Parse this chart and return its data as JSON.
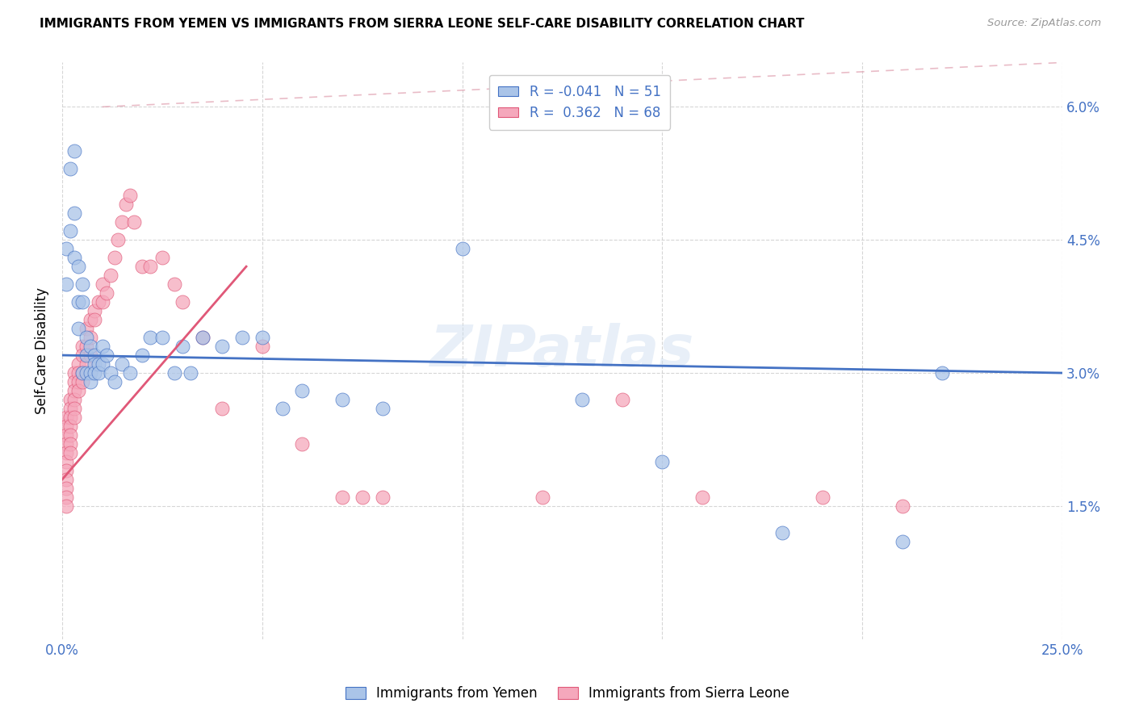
{
  "title": "IMMIGRANTS FROM YEMEN VS IMMIGRANTS FROM SIERRA LEONE SELF-CARE DISABILITY CORRELATION CHART",
  "source": "Source: ZipAtlas.com",
  "ylabel": "Self-Care Disability",
  "yticks": [
    "1.5%",
    "3.0%",
    "4.5%",
    "6.0%"
  ],
  "ytick_vals": [
    0.015,
    0.03,
    0.045,
    0.06
  ],
  "xlim": [
    0.0,
    0.25
  ],
  "ylim": [
    0.0,
    0.065
  ],
  "legend_r_yemen": "-0.041",
  "legend_n_yemen": "51",
  "legend_r_sierra": "0.362",
  "legend_n_sierra": "68",
  "color_yemen": "#aac4e8",
  "color_sierra": "#f5a8bc",
  "trendline_yemen_color": "#4472c4",
  "trendline_sierra_color": "#e05878",
  "watermark": "ZIPatlas",
  "yemen_x": [
    0.001,
    0.001,
    0.002,
    0.002,
    0.003,
    0.003,
    0.003,
    0.004,
    0.004,
    0.004,
    0.005,
    0.005,
    0.005,
    0.006,
    0.006,
    0.006,
    0.007,
    0.007,
    0.007,
    0.008,
    0.008,
    0.008,
    0.009,
    0.009,
    0.01,
    0.01,
    0.011,
    0.012,
    0.013,
    0.015,
    0.017,
    0.02,
    0.022,
    0.025,
    0.028,
    0.03,
    0.032,
    0.035,
    0.04,
    0.045,
    0.05,
    0.055,
    0.06,
    0.07,
    0.08,
    0.1,
    0.13,
    0.15,
    0.18,
    0.21,
    0.22
  ],
  "yemen_y": [
    0.044,
    0.04,
    0.053,
    0.046,
    0.055,
    0.048,
    0.043,
    0.042,
    0.038,
    0.035,
    0.04,
    0.038,
    0.03,
    0.034,
    0.032,
    0.03,
    0.033,
    0.03,
    0.029,
    0.032,
    0.031,
    0.03,
    0.031,
    0.03,
    0.033,
    0.031,
    0.032,
    0.03,
    0.029,
    0.031,
    0.03,
    0.032,
    0.034,
    0.034,
    0.03,
    0.033,
    0.03,
    0.034,
    0.033,
    0.034,
    0.034,
    0.026,
    0.028,
    0.027,
    0.026,
    0.044,
    0.027,
    0.02,
    0.012,
    0.011,
    0.03
  ],
  "sierra_x": [
    0.001,
    0.001,
    0.001,
    0.001,
    0.001,
    0.001,
    0.001,
    0.001,
    0.001,
    0.001,
    0.001,
    0.002,
    0.002,
    0.002,
    0.002,
    0.002,
    0.002,
    0.002,
    0.003,
    0.003,
    0.003,
    0.003,
    0.003,
    0.003,
    0.004,
    0.004,
    0.004,
    0.004,
    0.005,
    0.005,
    0.005,
    0.005,
    0.006,
    0.006,
    0.006,
    0.007,
    0.007,
    0.007,
    0.008,
    0.008,
    0.009,
    0.01,
    0.01,
    0.011,
    0.012,
    0.013,
    0.014,
    0.015,
    0.016,
    0.017,
    0.018,
    0.02,
    0.022,
    0.025,
    0.028,
    0.03,
    0.035,
    0.04,
    0.05,
    0.06,
    0.07,
    0.075,
    0.08,
    0.12,
    0.14,
    0.16,
    0.19,
    0.21
  ],
  "sierra_y": [
    0.025,
    0.024,
    0.023,
    0.022,
    0.021,
    0.02,
    0.019,
    0.018,
    0.017,
    0.016,
    0.015,
    0.027,
    0.026,
    0.025,
    0.024,
    0.023,
    0.022,
    0.021,
    0.03,
    0.029,
    0.028,
    0.027,
    0.026,
    0.025,
    0.031,
    0.03,
    0.029,
    0.028,
    0.033,
    0.032,
    0.03,
    0.029,
    0.035,
    0.033,
    0.031,
    0.036,
    0.034,
    0.032,
    0.037,
    0.036,
    0.038,
    0.04,
    0.038,
    0.039,
    0.041,
    0.043,
    0.045,
    0.047,
    0.049,
    0.05,
    0.047,
    0.042,
    0.042,
    0.043,
    0.04,
    0.038,
    0.034,
    0.026,
    0.033,
    0.022,
    0.016,
    0.016,
    0.016,
    0.016,
    0.027,
    0.016,
    0.016,
    0.015
  ],
  "yemen_trend_x": [
    0.0,
    0.25
  ],
  "yemen_trend_y": [
    0.032,
    0.03
  ],
  "sierra_trend_x": [
    0.0,
    0.046
  ],
  "sierra_trend_y": [
    0.018,
    0.042
  ],
  "dashed_line_x": [
    0.0,
    0.25
  ],
  "dashed_line_y": [
    0.065,
    0.065
  ]
}
